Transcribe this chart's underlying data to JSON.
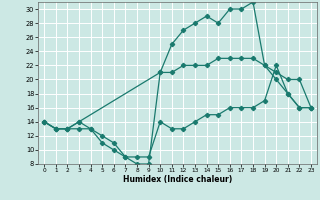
{
  "xlabel": "Humidex (Indice chaleur)",
  "bg_color": "#cce8e4",
  "grid_color": "#ffffff",
  "line_color": "#1a7a6e",
  "xlim": [
    -0.5,
    23.5
  ],
  "ylim": [
    8,
    31
  ],
  "xticks": [
    0,
    1,
    2,
    3,
    4,
    5,
    6,
    7,
    8,
    9,
    10,
    11,
    12,
    13,
    14,
    15,
    16,
    17,
    18,
    19,
    20,
    21,
    22,
    23
  ],
  "yticks": [
    8,
    10,
    12,
    14,
    16,
    18,
    20,
    22,
    24,
    26,
    28,
    30
  ],
  "line1_x": [
    0,
    1,
    2,
    3,
    4,
    5,
    6,
    7,
    8,
    9,
    10,
    11,
    12,
    13,
    14,
    15,
    16,
    17,
    18,
    19,
    20,
    21,
    22,
    23
  ],
  "line1_y": [
    14,
    13,
    13,
    13,
    13,
    12,
    11,
    9,
    8,
    8,
    21,
    25,
    27,
    28,
    29,
    28,
    30,
    30,
    31,
    22,
    20,
    18,
    16,
    16
  ],
  "line2_x": [
    0,
    1,
    2,
    3,
    10,
    11,
    12,
    13,
    14,
    15,
    16,
    17,
    18,
    19,
    20,
    21,
    22,
    23
  ],
  "line2_y": [
    14,
    13,
    13,
    14,
    21,
    21,
    22,
    22,
    22,
    23,
    23,
    23,
    23,
    22,
    21,
    20,
    20,
    16
  ],
  "line3_x": [
    0,
    1,
    2,
    3,
    4,
    5,
    6,
    7,
    8,
    9,
    10,
    11,
    12,
    13,
    14,
    15,
    16,
    17,
    18,
    19,
    20,
    21,
    22,
    23
  ],
  "line3_y": [
    14,
    13,
    13,
    14,
    13,
    11,
    10,
    9,
    9,
    9,
    14,
    13,
    13,
    14,
    15,
    15,
    16,
    16,
    16,
    17,
    22,
    18,
    16,
    16
  ]
}
